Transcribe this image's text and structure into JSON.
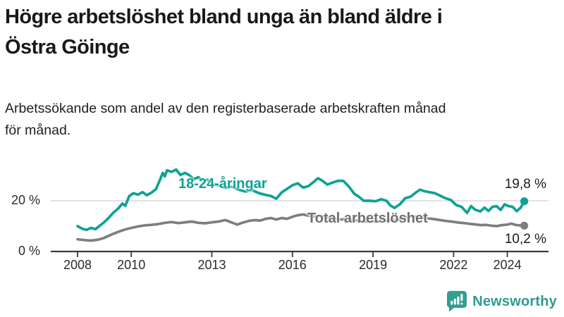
{
  "header": {
    "title_lines": [
      "Högre arbetslöshet bland unga än bland äldre i",
      "Östra Göinge"
    ],
    "subtitle_lines": [
      "Arbetssökande som andel av den registerbaserade arbetskraften månad",
      "för månad."
    ]
  },
  "footer": {
    "brand": "Newsworthy"
  },
  "colors": {
    "accent_teal": "#0DA294",
    "series_gray": "#7E7E7E",
    "axis": "#3B3B3B",
    "grid": "#D8D8D8",
    "text": "#1A1A1A",
    "logo_teal": "#339E93"
  },
  "chart_data": {
    "type": "line",
    "title": "Högre arbetslöshet bland unga än bland äldre i Östra Göinge",
    "subtitle": "Arbetssökande som andel av den registerbaserade arbetskraften månad för månad.",
    "xlabel": "",
    "ylabel": "",
    "grid": "horizontal-at-20-only",
    "legend_position": "inline-labels",
    "xlim": [
      2007.9,
      2025.1
    ],
    "ylim": [
      0,
      34
    ],
    "x_ticks": [
      2008,
      2010,
      2013,
      2016,
      2019,
      2022,
      2024
    ],
    "y_ticks": [
      {
        "value": 20,
        "label": "20 %"
      },
      {
        "value": 0,
        "label": "0 %"
      }
    ],
    "series": [
      {
        "name": "18-24-åringar",
        "color": "#0DA294",
        "end_label": "19,8 %",
        "last_value": 19.8,
        "points": [
          [
            2008.0,
            10.0
          ],
          [
            2008.17,
            9.0
          ],
          [
            2008.33,
            8.5
          ],
          [
            2008.5,
            9.3
          ],
          [
            2008.67,
            8.8
          ],
          [
            2008.83,
            10.2
          ],
          [
            2009.0,
            11.6
          ],
          [
            2009.17,
            13.4
          ],
          [
            2009.33,
            15.3
          ],
          [
            2009.5,
            16.8
          ],
          [
            2009.67,
            18.9
          ],
          [
            2009.78,
            18.0
          ],
          [
            2009.92,
            21.8
          ],
          [
            2010.08,
            23.0
          ],
          [
            2010.25,
            22.4
          ],
          [
            2010.42,
            23.4
          ],
          [
            2010.58,
            22.2
          ],
          [
            2010.75,
            23.2
          ],
          [
            2010.92,
            24.6
          ],
          [
            2011.08,
            28.5
          ],
          [
            2011.17,
            31.0
          ],
          [
            2011.25,
            29.6
          ],
          [
            2011.33,
            32.0
          ],
          [
            2011.5,
            31.4
          ],
          [
            2011.67,
            32.3
          ],
          [
            2011.83,
            30.2
          ],
          [
            2012.0,
            31.0
          ],
          [
            2012.17,
            30.0
          ],
          [
            2012.33,
            28.5
          ],
          [
            2012.5,
            29.3
          ],
          [
            2012.67,
            27.6
          ],
          [
            2012.83,
            28.3
          ],
          [
            2013.0,
            27.0
          ],
          [
            2013.25,
            26.0
          ],
          [
            2013.5,
            25.0
          ],
          [
            2013.75,
            25.6
          ],
          [
            2014.0,
            24.4
          ],
          [
            2014.25,
            23.6
          ],
          [
            2014.5,
            24.2
          ],
          [
            2014.75,
            23.0
          ],
          [
            2015.0,
            22.3
          ],
          [
            2015.2,
            21.9
          ],
          [
            2015.4,
            20.8
          ],
          [
            2015.6,
            23.3
          ],
          [
            2015.8,
            24.7
          ],
          [
            2016.0,
            26.1
          ],
          [
            2016.2,
            26.9
          ],
          [
            2016.4,
            25.2
          ],
          [
            2016.6,
            25.8
          ],
          [
            2016.8,
            27.5
          ],
          [
            2016.95,
            28.9
          ],
          [
            2017.1,
            28.0
          ],
          [
            2017.3,
            26.4
          ],
          [
            2017.5,
            27.2
          ],
          [
            2017.7,
            27.9
          ],
          [
            2017.9,
            27.8
          ],
          [
            2018.1,
            25.6
          ],
          [
            2018.3,
            22.8
          ],
          [
            2018.5,
            21.4
          ],
          [
            2018.65,
            20.0
          ],
          [
            2018.9,
            20.0
          ],
          [
            2019.1,
            19.8
          ],
          [
            2019.3,
            20.6
          ],
          [
            2019.5,
            20.0
          ],
          [
            2019.65,
            18.1
          ],
          [
            2019.8,
            17.2
          ],
          [
            2020.0,
            18.6
          ],
          [
            2020.2,
            21.0
          ],
          [
            2020.4,
            21.6
          ],
          [
            2020.6,
            23.3
          ],
          [
            2020.75,
            24.4
          ],
          [
            2020.9,
            23.8
          ],
          [
            2021.1,
            23.4
          ],
          [
            2021.3,
            23.0
          ],
          [
            2021.5,
            22.0
          ],
          [
            2021.7,
            21.0
          ],
          [
            2021.9,
            20.3
          ],
          [
            2022.1,
            18.3
          ],
          [
            2022.3,
            17.6
          ],
          [
            2022.5,
            15.2
          ],
          [
            2022.65,
            17.9
          ],
          [
            2022.8,
            16.5
          ],
          [
            2023.0,
            15.8
          ],
          [
            2023.15,
            17.3
          ],
          [
            2023.3,
            16.0
          ],
          [
            2023.45,
            17.6
          ],
          [
            2023.6,
            17.9
          ],
          [
            2023.75,
            16.4
          ],
          [
            2023.9,
            18.6
          ],
          [
            2024.05,
            17.9
          ],
          [
            2024.2,
            17.6
          ],
          [
            2024.35,
            15.9
          ],
          [
            2024.5,
            17.3
          ],
          [
            2024.63,
            19.8
          ]
        ]
      },
      {
        "name": "Total arbetslöshet",
        "color": "#7E7E7E",
        "end_label": "10,2 %",
        "last_value": 10.2,
        "points": [
          [
            2008.0,
            4.8
          ],
          [
            2008.25,
            4.5
          ],
          [
            2008.5,
            4.3
          ],
          [
            2008.75,
            4.6
          ],
          [
            2009.0,
            5.4
          ],
          [
            2009.25,
            6.6
          ],
          [
            2009.5,
            7.7
          ],
          [
            2009.75,
            8.6
          ],
          [
            2010.0,
            9.3
          ],
          [
            2010.25,
            9.9
          ],
          [
            2010.5,
            10.3
          ],
          [
            2010.75,
            10.5
          ],
          [
            2011.0,
            10.8
          ],
          [
            2011.25,
            11.3
          ],
          [
            2011.5,
            11.6
          ],
          [
            2011.75,
            11.2
          ],
          [
            2012.0,
            11.5
          ],
          [
            2012.25,
            11.8
          ],
          [
            2012.5,
            11.3
          ],
          [
            2012.75,
            11.1
          ],
          [
            2013.0,
            11.5
          ],
          [
            2013.25,
            11.8
          ],
          [
            2013.5,
            12.4
          ],
          [
            2013.75,
            11.4
          ],
          [
            2013.95,
            10.6
          ],
          [
            2014.15,
            11.4
          ],
          [
            2014.4,
            12.1
          ],
          [
            2014.6,
            12.4
          ],
          [
            2014.8,
            12.2
          ],
          [
            2015.0,
            12.9
          ],
          [
            2015.2,
            13.2
          ],
          [
            2015.4,
            12.6
          ],
          [
            2015.6,
            13.2
          ],
          [
            2015.8,
            12.9
          ],
          [
            2016.0,
            13.7
          ],
          [
            2016.2,
            14.3
          ],
          [
            2016.4,
            14.6
          ],
          [
            2016.6,
            14.1
          ],
          [
            2016.8,
            13.8
          ],
          [
            2017.0,
            14.0
          ],
          [
            2017.2,
            13.5
          ],
          [
            2017.4,
            13.2
          ],
          [
            2017.6,
            12.9
          ],
          [
            2017.8,
            12.6
          ],
          [
            2018.0,
            12.8
          ],
          [
            2018.25,
            12.4
          ],
          [
            2018.5,
            12.1
          ],
          [
            2018.75,
            11.8
          ],
          [
            2019.0,
            11.9
          ],
          [
            2019.25,
            12.0
          ],
          [
            2019.5,
            12.2
          ],
          [
            2019.75,
            12.4
          ],
          [
            2020.0,
            12.7
          ],
          [
            2020.25,
            13.4
          ],
          [
            2020.5,
            13.8
          ],
          [
            2020.75,
            13.5
          ],
          [
            2021.0,
            13.1
          ],
          [
            2021.25,
            12.8
          ],
          [
            2021.5,
            12.4
          ],
          [
            2021.75,
            12.0
          ],
          [
            2022.0,
            11.7
          ],
          [
            2022.2,
            11.4
          ],
          [
            2022.4,
            11.2
          ],
          [
            2022.6,
            10.9
          ],
          [
            2022.8,
            10.7
          ],
          [
            2023.0,
            10.4
          ],
          [
            2023.2,
            10.5
          ],
          [
            2023.4,
            10.2
          ],
          [
            2023.6,
            10.0
          ],
          [
            2023.8,
            10.4
          ],
          [
            2024.0,
            10.6
          ],
          [
            2024.15,
            11.0
          ],
          [
            2024.3,
            10.5
          ],
          [
            2024.45,
            10.3
          ],
          [
            2024.63,
            10.2
          ]
        ]
      }
    ]
  }
}
